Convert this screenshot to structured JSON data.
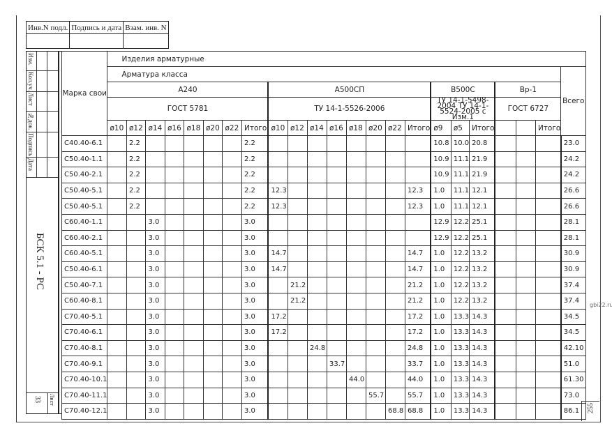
{
  "stamp": {
    "inv_podl": "Инв.N подл.",
    "podpis_data": "Подпись и дата",
    "vzam_inv": "Взам. инв. N"
  },
  "strip": {
    "labels": [
      "Изм.",
      "Кол.уч.",
      "Лист",
      "№док.",
      "Подпись",
      "Дата"
    ],
    "doc_code": "БСК 5.1 - РС",
    "sheet_label": "Лист",
    "sheet_number": "33"
  },
  "header": {
    "title": "Изделия арматурные",
    "subtitle": "Арматура класса",
    "marka": "Марка свои",
    "total": "Всего",
    "classes": [
      {
        "name": "А240",
        "standard": "ГОСТ 5781"
      },
      {
        "name": "А500СП",
        "standard": "ТУ 14-1-5526-2006"
      },
      {
        "name": "В500С",
        "standard": "ТУ 14-1-5498-2004 ТУ 14-1-5524-2005 с Изм.1"
      },
      {
        "name": "Вр-1",
        "standard": "ГОСТ 6727"
      }
    ],
    "a240_cols": [
      "ø10",
      "ø12",
      "ø14",
      "ø16",
      "ø18",
      "ø20",
      "ø22",
      "Итого"
    ],
    "a500_cols": [
      "ø10",
      "ø12",
      "ø14",
      "ø16",
      "ø18",
      "ø20",
      "ø22",
      "Итого"
    ],
    "b500_cols": [
      "ø9",
      "ø5",
      "Итого"
    ],
    "bp_cols": [
      "",
      "",
      "Итого"
    ]
  },
  "rows": [
    [
      "С40.40-6.1",
      "",
      "2.2",
      "",
      "",
      "",
      "",
      "",
      "2.2",
      "",
      "",
      "",
      "",
      "",
      "",
      "",
      "",
      "10.8",
      "10.0",
      "20.8",
      "",
      "",
      "",
      "23.0"
    ],
    [
      "С50.40-1.1",
      "",
      "2.2",
      "",
      "",
      "",
      "",
      "",
      "2.2",
      "",
      "",
      "",
      "",
      "",
      "",
      "",
      "",
      "10.9",
      "11.1",
      "21.9",
      "",
      "",
      "",
      "24.2"
    ],
    [
      "С50.40-2.1",
      "",
      "2.2",
      "",
      "",
      "",
      "",
      "",
      "2.2",
      "",
      "",
      "",
      "",
      "",
      "",
      "",
      "",
      "10.9",
      "11.1",
      "21.9",
      "",
      "",
      "",
      "24.2"
    ],
    [
      "С50.40-5.1",
      "",
      "2.2",
      "",
      "",
      "",
      "",
      "",
      "2.2",
      "12.3",
      "",
      "",
      "",
      "",
      "",
      "",
      "12.3",
      "1.0",
      "11.1",
      "12.1",
      "",
      "",
      "",
      "26.6"
    ],
    [
      "С50.40-5.1",
      "",
      "2.2",
      "",
      "",
      "",
      "",
      "",
      "2.2",
      "12.3",
      "",
      "",
      "",
      "",
      "",
      "",
      "12.3",
      "1.0",
      "11.1",
      "12.1",
      "",
      "",
      "",
      "26.6"
    ],
    [
      "С60.40-1.1",
      "",
      "",
      "3.0",
      "",
      "",
      "",
      "",
      "3.0",
      "",
      "",
      "",
      "",
      "",
      "",
      "",
      "",
      "12.9",
      "12.2",
      "25.1",
      "",
      "",
      "",
      "28.1"
    ],
    [
      "С60.40-2.1",
      "",
      "",
      "3.0",
      "",
      "",
      "",
      "",
      "3.0",
      "",
      "",
      "",
      "",
      "",
      "",
      "",
      "",
      "12.9",
      "12.2",
      "25.1",
      "",
      "",
      "",
      "28.1"
    ],
    [
      "С60.40-5.1",
      "",
      "",
      "3.0",
      "",
      "",
      "",
      "",
      "3.0",
      "14.7",
      "",
      "",
      "",
      "",
      "",
      "",
      "14.7",
      "1.0",
      "12.2",
      "13.2",
      "",
      "",
      "",
      "30.9"
    ],
    [
      "С50.40-6.1",
      "",
      "",
      "3.0",
      "",
      "",
      "",
      "",
      "3.0",
      "14.7",
      "",
      "",
      "",
      "",
      "",
      "",
      "14.7",
      "1.0",
      "12.2",
      "13.2",
      "",
      "",
      "",
      "30.9"
    ],
    [
      "С50.40-7.1",
      "",
      "",
      "3.0",
      "",
      "",
      "",
      "",
      "3.0",
      "",
      "21.2",
      "",
      "",
      "",
      "",
      "",
      "21.2",
      "1.0",
      "12.2",
      "13.2",
      "",
      "",
      "",
      "37.4"
    ],
    [
      "С60.40-8.1",
      "",
      "",
      "3.0",
      "",
      "",
      "",
      "",
      "3.0",
      "",
      "21.2",
      "",
      "",
      "",
      "",
      "",
      "21.2",
      "1.0",
      "12.2",
      "13.2",
      "",
      "",
      "",
      "37.4"
    ],
    [
      "С70.40-5.1",
      "",
      "",
      "3.0",
      "",
      "",
      "",
      "",
      "3.0",
      "17.2",
      "",
      "",
      "",
      "",
      "",
      "",
      "17.2",
      "1.0",
      "13.3",
      "14.3",
      "",
      "",
      "",
      "34.5"
    ],
    [
      "С70.40-6.1",
      "",
      "",
      "3.0",
      "",
      "",
      "",
      "",
      "3.0",
      "17.2",
      "",
      "",
      "",
      "",
      "",
      "",
      "17.2",
      "1.0",
      "13.3",
      "14.3",
      "",
      "",
      "",
      "34.5"
    ],
    [
      "С70.40-8.1",
      "",
      "",
      "3.0",
      "",
      "",
      "",
      "",
      "3.0",
      "",
      "",
      "24.8",
      "",
      "",
      "",
      "",
      "24.8",
      "1.0",
      "13.3",
      "14.3",
      "",
      "",
      "",
      "42.10"
    ],
    [
      "С70.40-9.1",
      "",
      "",
      "3.0",
      "",
      "",
      "",
      "",
      "3.0",
      "",
      "",
      "",
      "33.7",
      "",
      "",
      "",
      "33.7",
      "1.0",
      "13.3",
      "14.3",
      "",
      "",
      "",
      "51.0"
    ],
    [
      "С70.40-10.1",
      "",
      "",
      "3.0",
      "",
      "",
      "",
      "",
      "3.0",
      "",
      "",
      "",
      "",
      "44.0",
      "",
      "",
      "44.0",
      "1.0",
      "13.3",
      "14.3",
      "",
      "",
      "",
      "61.30"
    ],
    [
      "С70.40-11.1",
      "",
      "",
      "3.0",
      "",
      "",
      "",
      "",
      "3.0",
      "",
      "",
      "",
      "",
      "",
      "55.7",
      "",
      "55.7",
      "1.0",
      "13.3",
      "14.3",
      "",
      "",
      "",
      "73.0"
    ],
    [
      "С70.40-12.1",
      "",
      "",
      "3.0",
      "",
      "",
      "",
      "",
      "3.0",
      "",
      "",
      "",
      "",
      "",
      "",
      "68.8",
      "68.8",
      "1.0",
      "13.3",
      "14.3",
      "",
      "",
      "",
      "86.1"
    ]
  ],
  "watermark": "gbi22.ru",
  "page_number": "255"
}
